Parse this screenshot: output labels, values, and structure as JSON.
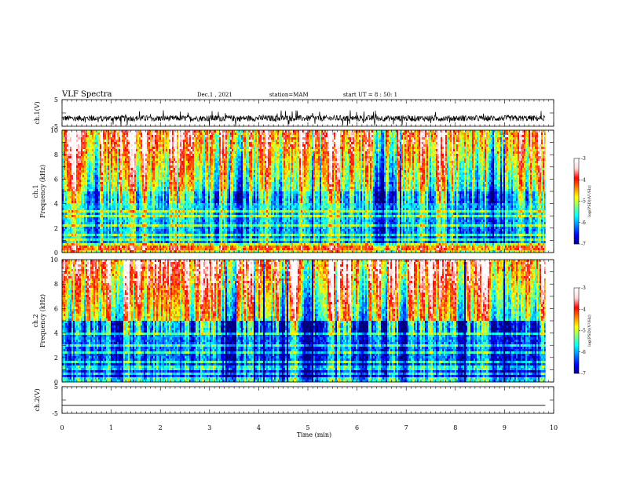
{
  "header": {
    "title": "VLF Spectra",
    "date": "Dec.1 , 2021",
    "station": "station=MAM",
    "start": "start UT = 8 : 50: 1"
  },
  "colors": {
    "spectrum": [
      "#00007f",
      "#0000ff",
      "#0080ff",
      "#00ffff",
      "#80ff80",
      "#ffff00",
      "#ff8000",
      "#ff0000",
      "#ffd8d8",
      "#ffffff"
    ]
  },
  "chart_data": [
    {
      "type": "line",
      "name": "ch1-waveform",
      "ylabel": "ch.1(V)",
      "ylim": [
        -5,
        5
      ],
      "yticks": [
        "5",
        "-5"
      ],
      "description_values": {
        "mean": -2,
        "range": [
          -5,
          1
        ]
      }
    },
    {
      "type": "heatmap",
      "name": "ch1-spectrogram",
      "ylabel_top": "ch.1",
      "ylabel": "Frequency (kHz)",
      "ylim": [
        0,
        10
      ],
      "yticks": [
        "0",
        "2",
        "4",
        "6",
        "8",
        "10"
      ],
      "colorbar": {
        "label": "log(PSD)(V²/Hz)",
        "range": [
          -7,
          -3
        ],
        "ticks": [
          "-3",
          "-4",
          "-5",
          "-6",
          "-7"
        ]
      }
    },
    {
      "type": "heatmap",
      "name": "ch2-spectrogram",
      "ylabel_top": "ch.2",
      "ylabel": "Frequency (kHz)",
      "ylim": [
        0,
        10
      ],
      "yticks": [
        "0",
        "2",
        "4",
        "6",
        "8",
        "10"
      ],
      "colorbar": {
        "label": "log(PSD)(V²/Hz)",
        "range": [
          -7,
          -3
        ],
        "ticks": [
          "-3",
          "-4",
          "-5",
          "-6",
          "-7"
        ]
      }
    },
    {
      "type": "line",
      "name": "ch2-waveform",
      "ylabel": "ch.2(V)",
      "ylim": [
        -5,
        5
      ],
      "yticks": [
        "5",
        "-5"
      ],
      "description_values": {
        "mean": -2
      }
    }
  ],
  "xaxis": {
    "label": "Time (min)",
    "xlim": [
      0,
      10
    ],
    "ticks": [
      "0",
      "1",
      "2",
      "3",
      "4",
      "5",
      "6",
      "7",
      "8",
      "9",
      "10"
    ],
    "data_end": 9.83
  }
}
